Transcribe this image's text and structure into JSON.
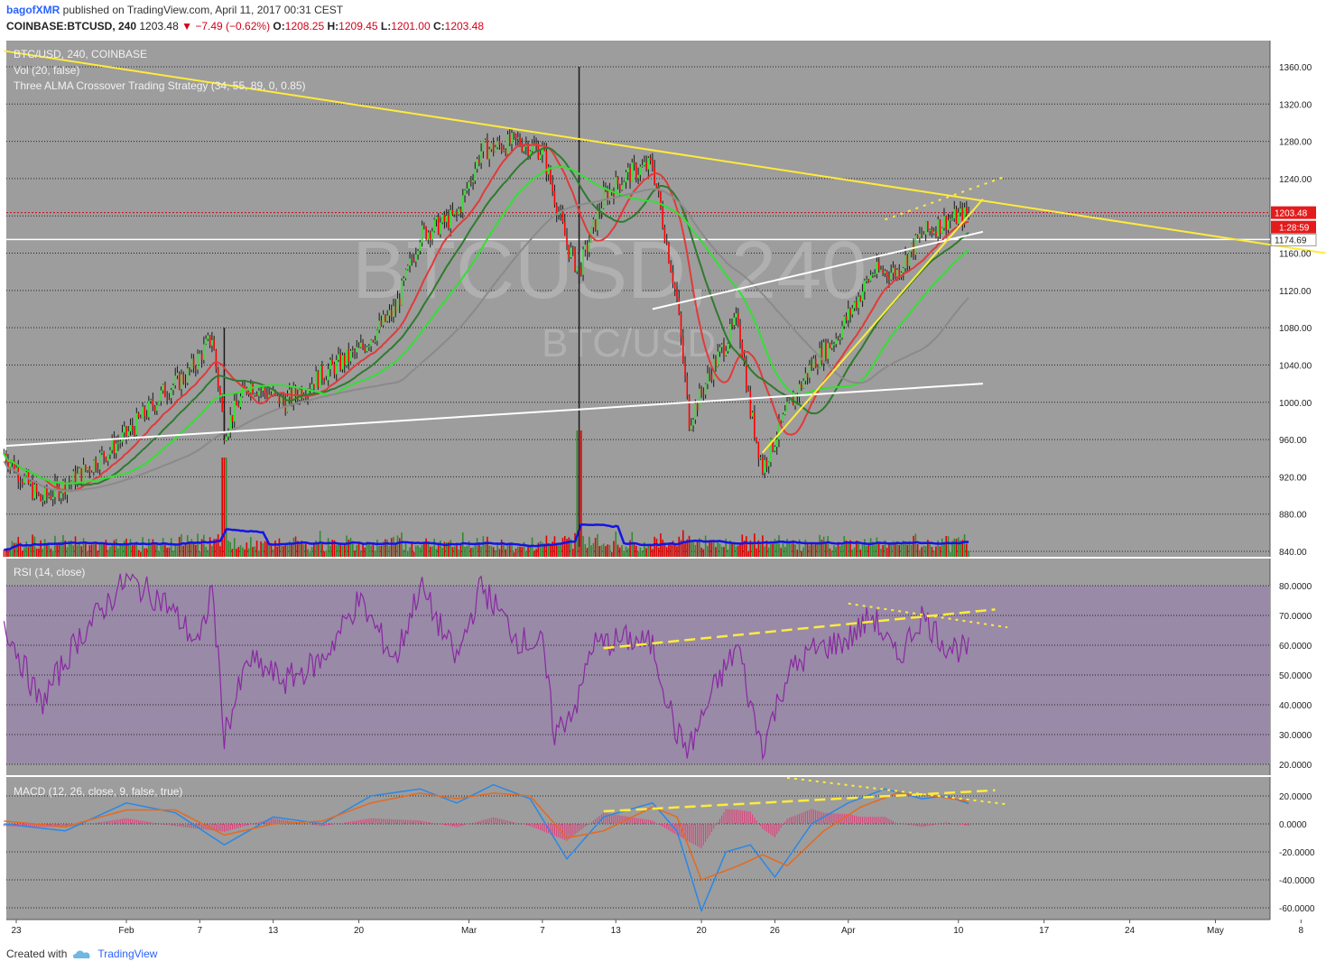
{
  "header": {
    "user": "bagofXMR",
    "published": "published on TradingView.com, April 11, 2017 00:31 CEST",
    "symbol": "COINBASE:BTCUSD, 240",
    "last": "1203.48",
    "change": "−7.49 (−0.62%)",
    "o_label": "O:",
    "o_value": "1208.25",
    "h_label": "H:",
    "h_value": "1209.45",
    "l_label": "L:",
    "l_value": "1201.00",
    "c_label": "C:",
    "c_value": "1203.48"
  },
  "footer": {
    "created_with": "Created with",
    "brand": "TradingView"
  },
  "colors": {
    "pane_bg": "#9d9d9d",
    "rsi_band": "#998aa7",
    "bull": "#2ee52e",
    "bear": "#ff0000",
    "trend_yellow": "#ffeb3b",
    "trend_white": "#ffffff",
    "vol_ma": "#1414e6",
    "rsi_line": "#8a28a3",
    "macd_line": "#2a88e6",
    "signal_line": "#e6691e",
    "hist": "#e6387a"
  },
  "chart_data": [
    {
      "type": "candlestick",
      "pane": "price",
      "legend": [
        "BTC/USD, 240, COINBASE",
        "Vol (20, false)",
        "Three ALMA Crossover Trading Strategy (34, 55, 89, 0, 0.85)"
      ],
      "watermark": [
        "BTCUSD, 240",
        "BTC/USD"
      ],
      "y_ticks": [
        840,
        880,
        920,
        960,
        1000,
        1040,
        1080,
        1120,
        1160,
        1200,
        1240,
        1280,
        1320,
        1360
      ],
      "y_tick_labels": [
        "840.00",
        "880.00",
        "920.00",
        "960.00",
        "1000.00",
        "1040.00",
        "1080.00",
        "1120.00",
        "1160.00",
        "",
        "1240.00",
        "1280.00",
        "1320.00",
        "1360.00"
      ],
      "ylim": [
        835,
        1380
      ],
      "last_price_label": "1203.48",
      "countdown_label": "1:28:59",
      "level_label": "1174.69",
      "last_price": 1203.48,
      "level_price": 1174.69,
      "close_path_points": [
        [
          "Jan 22",
          945
        ],
        [
          "Jan 25",
          895
        ],
        [
          "Jan 28",
          920
        ],
        [
          "Feb 1",
          965
        ],
        [
          "Feb 4",
          1010
        ],
        [
          "Feb 6",
          1030
        ],
        [
          "Feb 8",
          1070
        ],
        [
          "Feb 9",
          970
        ],
        [
          "Feb 11",
          1020
        ],
        [
          "Feb 14",
          1000
        ],
        [
          "Feb 17",
          1030
        ],
        [
          "Feb 20",
          1055
        ],
        [
          "Feb 23",
          1100
        ],
        [
          "Feb 25",
          1180
        ],
        [
          "Feb 28",
          1200
        ],
        [
          "Mar 2",
          1270
        ],
        [
          "Mar 5",
          1280
        ],
        [
          "Mar 7",
          1270
        ],
        [
          "Mar 9",
          1170
        ],
        [
          "Mar 10",
          1140
        ],
        [
          "Mar 12",
          1220
        ],
        [
          "Mar 14",
          1245
        ],
        [
          "Mar 16",
          1255
        ],
        [
          "Mar 18",
          1110
        ],
        [
          "Mar 19",
          980
        ],
        [
          "Mar 21",
          1040
        ],
        [
          "Mar 23",
          1090
        ],
        [
          "Mar 24",
          990
        ],
        [
          "Mar 25",
          930
        ],
        [
          "Mar 27",
          990
        ],
        [
          "Mar 29",
          1040
        ],
        [
          "Mar 31",
          1070
        ],
        [
          "Apr 3",
          1140
        ],
        [
          "Apr 5",
          1140
        ],
        [
          "Apr 7",
          1180
        ],
        [
          "Apr 9",
          1195
        ],
        [
          "Apr 11",
          1203
        ]
      ]
    },
    {
      "type": "line",
      "pane": "rsi",
      "legend": "RSI (14, close)",
      "y_ticks": [
        20,
        30,
        40,
        50,
        60,
        70,
        80
      ],
      "y_tick_labels": [
        "20.0000",
        "30.0000",
        "40.0000",
        "50.0000",
        "60.0000",
        "70.0000",
        "80.0000"
      ],
      "ylim": [
        15,
        85
      ],
      "band": [
        20,
        80
      ],
      "path_points": [
        [
          "Jan 22",
          68
        ],
        [
          "Jan 25",
          40
        ],
        [
          "Jan 28",
          62
        ],
        [
          "Feb 1",
          82
        ],
        [
          "Feb 4",
          75
        ],
        [
          "Feb 7",
          60
        ],
        [
          "Feb 8",
          80
        ],
        [
          "Feb 9",
          30
        ],
        [
          "Feb 11",
          55
        ],
        [
          "Feb 14",
          48
        ],
        [
          "Feb 17",
          55
        ],
        [
          "Feb 20",
          75
        ],
        [
          "Feb 23",
          55
        ],
        [
          "Feb 25",
          80
        ],
        [
          "Feb 28",
          55
        ],
        [
          "Mar 2",
          80
        ],
        [
          "Mar 5",
          62
        ],
        [
          "Mar 7",
          60
        ],
        [
          "Mar 8",
          30
        ],
        [
          "Mar 10",
          42
        ],
        [
          "Mar 11",
          60
        ],
        [
          "Mar 14",
          62
        ],
        [
          "Mar 16",
          60
        ],
        [
          "Mar 18",
          30
        ],
        [
          "Mar 19",
          25
        ],
        [
          "Mar 21",
          45
        ],
        [
          "Mar 23",
          60
        ],
        [
          "Mar 24",
          40
        ],
        [
          "Mar 25",
          26
        ],
        [
          "Mar 27",
          50
        ],
        [
          "Mar 29",
          58
        ],
        [
          "Apr 1",
          62
        ],
        [
          "Apr 3",
          70
        ],
        [
          "Apr 5",
          55
        ],
        [
          "Apr 7",
          70
        ],
        [
          "Apr 9",
          60
        ],
        [
          "Apr 11",
          58
        ]
      ]
    },
    {
      "type": "line",
      "pane": "macd",
      "legend": "MACD (12, 26, close, 9, false, true)",
      "y_ticks": [
        -60,
        -40,
        -20,
        0,
        20
      ],
      "y_tick_labels": [
        "-60.0000",
        "-40.0000",
        "-20.0000",
        "0.0000",
        "20.0000"
      ],
      "ylim": [
        -68,
        32
      ],
      "macd_points": [
        [
          "Jan 22",
          0
        ],
        [
          "Jan 27",
          -5
        ],
        [
          "Feb 1",
          15
        ],
        [
          "Feb 5",
          8
        ],
        [
          "Feb 9",
          -15
        ],
        [
          "Feb 13",
          5
        ],
        [
          "Feb 17",
          0
        ],
        [
          "Feb 21",
          20
        ],
        [
          "Feb 25",
          25
        ],
        [
          "Feb 28",
          15
        ],
        [
          "Mar 3",
          28
        ],
        [
          "Mar 6",
          18
        ],
        [
          "Mar 9",
          -25
        ],
        [
          "Mar 12",
          5
        ],
        [
          "Mar 16",
          15
        ],
        [
          "Mar 18",
          -5
        ],
        [
          "Mar 20",
          -62
        ],
        [
          "Mar 22",
          -20
        ],
        [
          "Mar 24",
          -15
        ],
        [
          "Mar 26",
          -38
        ],
        [
          "Mar 29",
          0
        ],
        [
          "Apr 1",
          15
        ],
        [
          "Apr 4",
          25
        ],
        [
          "Apr 7",
          18
        ],
        [
          "Apr 9",
          20
        ],
        [
          "Apr 11",
          14
        ]
      ],
      "signal_points": [
        [
          "Jan 22",
          2
        ],
        [
          "Jan 27",
          -2
        ],
        [
          "Feb 1",
          10
        ],
        [
          "Feb 5",
          10
        ],
        [
          "Feb 9",
          -8
        ],
        [
          "Feb 13",
          0
        ],
        [
          "Feb 17",
          2
        ],
        [
          "Feb 21",
          15
        ],
        [
          "Feb 25",
          22
        ],
        [
          "Feb 28",
          18
        ],
        [
          "Mar 3",
          22
        ],
        [
          "Mar 6",
          20
        ],
        [
          "Mar 9",
          -10
        ],
        [
          "Mar 12",
          -5
        ],
        [
          "Mar 16",
          12
        ],
        [
          "Mar 18",
          5
        ],
        [
          "Mar 20",
          -40
        ],
        [
          "Mar 23",
          -30
        ],
        [
          "Mar 25",
          -22
        ],
        [
          "Mar 27",
          -30
        ],
        [
          "Mar 30",
          -5
        ],
        [
          "Apr 2",
          12
        ],
        [
          "Apr 5",
          22
        ],
        [
          "Apr 8",
          20
        ],
        [
          "Apr 11",
          16
        ]
      ]
    }
  ],
  "x_axis": {
    "labels": [
      "23",
      "Feb",
      "7",
      "13",
      "20",
      "Mar",
      "7",
      "13",
      "20",
      "26",
      "Apr",
      "10",
      "17",
      "24",
      "May",
      "8"
    ],
    "dates": [
      "Jan 23",
      "Feb 1",
      "Feb 7",
      "Feb 13",
      "Feb 20",
      "Mar 1",
      "Mar 7",
      "Mar 13",
      "Mar 20",
      "Mar 26",
      "Apr 1",
      "Apr 10",
      "Apr 17",
      "Apr 24",
      "May 1",
      "May 8"
    ]
  }
}
